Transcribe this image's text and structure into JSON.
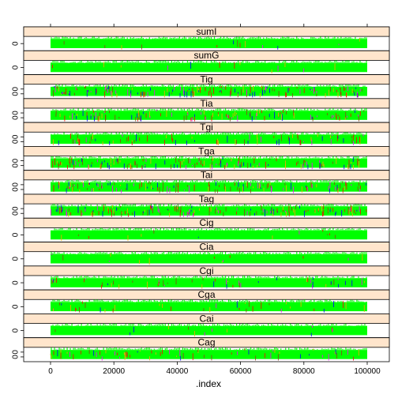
{
  "chart_data": {
    "type": "line",
    "layout": "trellis",
    "xlabel": ".index",
    "xlim": [
      0,
      100000
    ],
    "x_ticks": [
      0,
      20000,
      40000,
      60000,
      80000,
      100000
    ],
    "x_tick_labels": [
      "0",
      "20000",
      "40000",
      "60000",
      "80000",
      "100000"
    ],
    "colors": {
      "strip": "#ffe5cc",
      "trace_main": "#00ff00",
      "trace_alt": [
        "#ff0000",
        "#ffa500",
        "#0000ff",
        "#ff00ff",
        "#8b4513"
      ]
    },
    "panels": [
      {
        "name": "sumI",
        "y_tick_labels": [
          "0"
        ],
        "ylim": [
          0,
          1
        ],
        "noise": 0.05
      },
      {
        "name": "sumG",
        "y_tick_labels": [
          "0"
        ],
        "ylim": [
          0,
          1
        ],
        "noise": 0.05
      },
      {
        "name": "Tig",
        "y_tick_labels": [
          "0",
          "0"
        ],
        "ylim": [
          0,
          1
        ],
        "noise": 0.6
      },
      {
        "name": "Tia",
        "y_tick_labels": [
          "0",
          "0"
        ],
        "ylim": [
          0,
          1
        ],
        "noise": 0.45
      },
      {
        "name": "Tgi",
        "y_tick_labels": [
          "0",
          "0"
        ],
        "ylim": [
          0,
          1
        ],
        "noise": 0.3
      },
      {
        "name": "Tga",
        "y_tick_labels": [
          "0",
          "0"
        ],
        "ylim": [
          0,
          1
        ],
        "noise": 0.55
      },
      {
        "name": "Tai",
        "y_tick_labels": [
          "0",
          "0"
        ],
        "ylim": [
          0,
          1
        ],
        "noise": 0.5
      },
      {
        "name": "Tag",
        "y_tick_labels": [
          "0",
          "0"
        ],
        "ylim": [
          0,
          1
        ],
        "noise": 0.6
      },
      {
        "name": "Cig",
        "y_tick_labels": [
          "0"
        ],
        "ylim": [
          0,
          1
        ],
        "noise": 0.05
      },
      {
        "name": "Cia",
        "y_tick_labels": [
          "0"
        ],
        "ylim": [
          0,
          1
        ],
        "noise": 0.05
      },
      {
        "name": "Cgi",
        "y_tick_labels": [
          "0"
        ],
        "ylim": [
          0,
          1
        ],
        "noise": 0.2
      },
      {
        "name": "Cga",
        "y_tick_labels": [
          "0"
        ],
        "ylim": [
          0,
          1
        ],
        "noise": 0.15
      },
      {
        "name": "Cai",
        "y_tick_labels": [
          "0"
        ],
        "ylim": [
          0,
          1
        ],
        "noise": 0.05
      },
      {
        "name": "Cag",
        "y_tick_labels": [
          "0",
          "0"
        ],
        "ylim": [
          0,
          1
        ],
        "noise": 0.25
      }
    ]
  }
}
